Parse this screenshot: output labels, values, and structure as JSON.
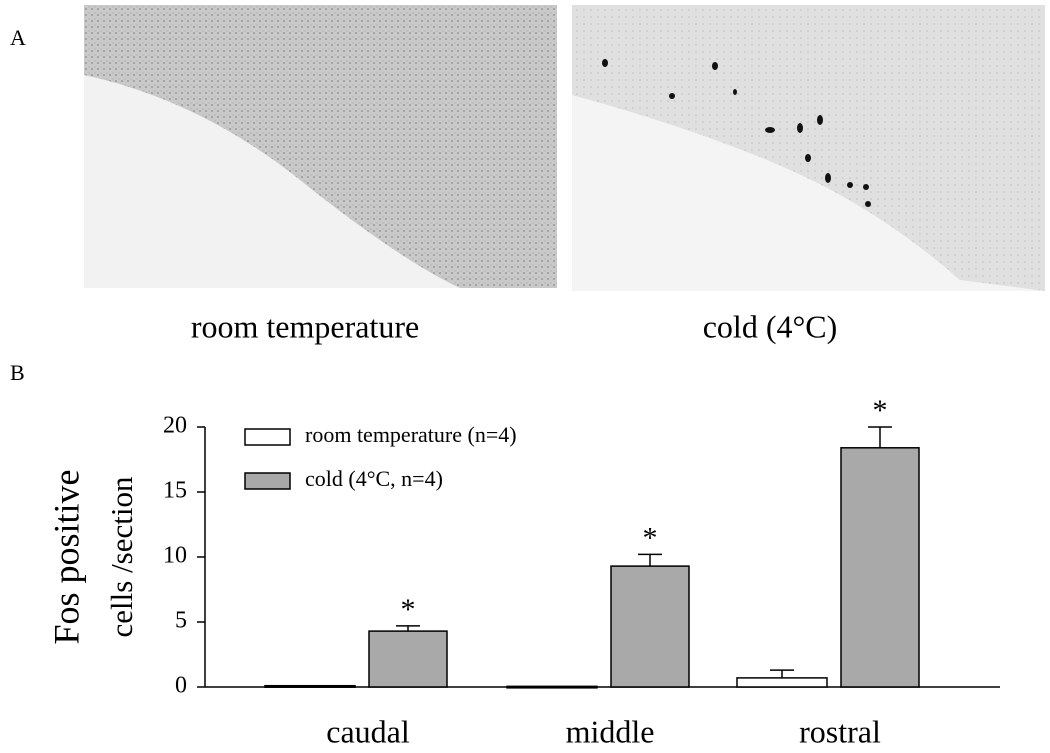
{
  "panel_a": {
    "label": "A",
    "images": [
      {
        "caption": "room temperature"
      },
      {
        "caption": "cold (4°C)"
      }
    ]
  },
  "panel_b": {
    "label": "B"
  },
  "chart_data": {
    "type": "bar",
    "ylabel": [
      "Fos positive",
      "cells /section"
    ],
    "categories": [
      "caudal",
      "middle",
      "rostral"
    ],
    "series": [
      {
        "name": "room temperature (n=4)",
        "color": "#ffffff",
        "values": [
          0.1,
          0.05,
          0.7
        ],
        "errors": [
          null,
          null,
          0.6
        ]
      },
      {
        "name": "cold (4°C, n=4)",
        "color": "#a9a9a9",
        "values": [
          4.3,
          9.3,
          18.4
        ],
        "errors": [
          0.4,
          0.9,
          1.6
        ],
        "annotations": [
          "*",
          "*",
          "*"
        ]
      }
    ],
    "ylim": [
      0,
      20
    ],
    "yticks": [
      0,
      5,
      10,
      15,
      20
    ],
    "legend": "upper-left"
  }
}
